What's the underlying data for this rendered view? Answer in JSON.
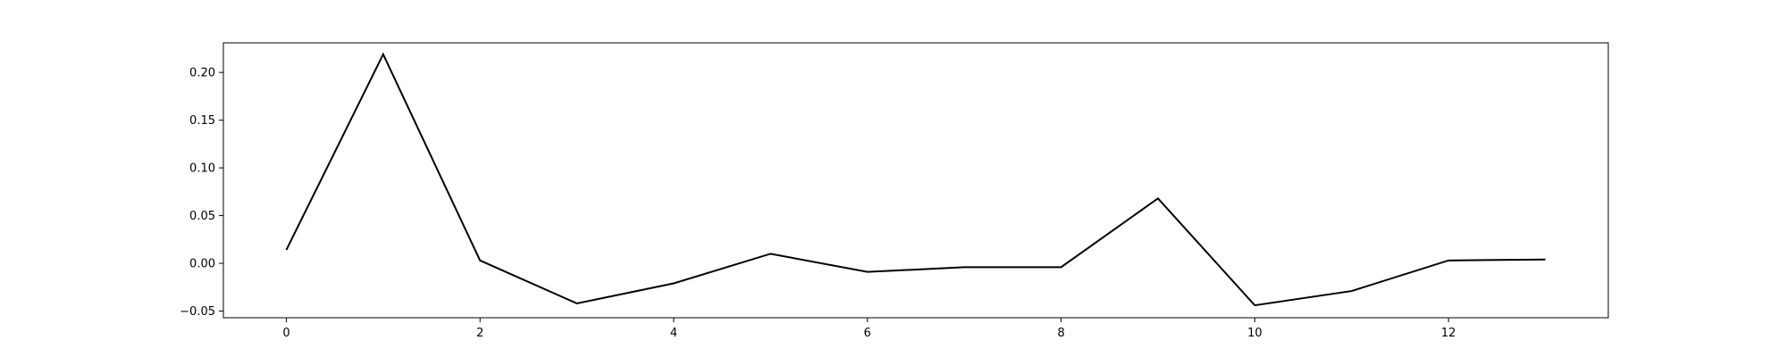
{
  "chart_data": {
    "type": "line",
    "title": "",
    "xlabel": "",
    "ylabel": "",
    "x": [
      0,
      1,
      2,
      3,
      4,
      5,
      6,
      7,
      8,
      9,
      10,
      11,
      12,
      13
    ],
    "series": [
      {
        "values": [
          0.014,
          0.219,
          0.003,
          -0.042,
          -0.021,
          0.01,
          -0.009,
          -0.004,
          -0.004,
          0.068,
          -0.044,
          -0.029,
          0.003,
          0.004
        ],
        "color": "#000000"
      }
    ],
    "xlim": [
      -0.65,
      13.65
    ],
    "ylim": [
      -0.057,
      0.231
    ],
    "xticks": [
      0,
      2,
      4,
      6,
      8,
      10,
      12
    ],
    "xtick_labels": [
      "0",
      "2",
      "4",
      "6",
      "8",
      "10",
      "12"
    ],
    "yticks": [
      -0.05,
      0.0,
      0.05,
      0.1,
      0.15,
      0.2
    ],
    "ytick_labels": [
      "−0.05",
      "0.00",
      "0.05",
      "0.10",
      "0.15",
      "0.20"
    ],
    "grid": false,
    "legend": "none"
  }
}
